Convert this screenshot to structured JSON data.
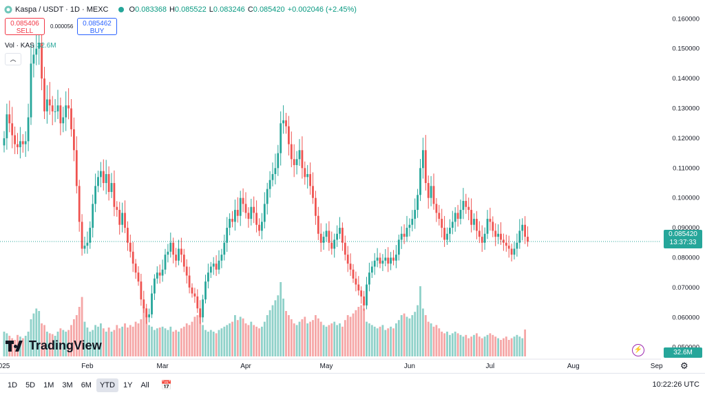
{
  "header": {
    "symbol": "Kaspa / USDT · 1D · MEXC",
    "ohlc": [
      {
        "k": "O",
        "v": "0.083368"
      },
      {
        "k": "H",
        "v": "0.085522"
      },
      {
        "k": "L",
        "v": "0.083246"
      },
      {
        "k": "C",
        "v": "0.085420"
      }
    ],
    "change": "+0.002046 (+2.45%)"
  },
  "trade": {
    "sell_price": "0.085406",
    "sell_label": "SELL",
    "spread": "0.000056",
    "buy_price": "0.085462",
    "buy_label": "BUY"
  },
  "volume_legend": {
    "label": "Vol · KAS",
    "value": "32.6M"
  },
  "price_labels": {
    "last_price": "0.085420",
    "countdown": "13:37:33",
    "volume": "32.6M"
  },
  "timeframes": [
    "1D",
    "5D",
    "1M",
    "3M",
    "6M",
    "YTD",
    "1Y",
    "All"
  ],
  "active_timeframe": "YTD",
  "clock": "10:22:26 UTC",
  "watermark": "TradingView",
  "colors": {
    "up": "#26a69a",
    "down": "#ef5350",
    "vol_up": "#8fd1c9",
    "vol_down": "#f5a6a6",
    "last_price": "#26a69a"
  },
  "icons": [
    "kaspa-logo-icon",
    "status-dot-icon",
    "collapse-chevron-icon",
    "calendar-icon",
    "settings-gear-icon",
    "lightning-icon"
  ],
  "chart_data": {
    "type": "candlestick",
    "ylim": [
      0.046,
      0.164
    ],
    "y_ticks": [
      "0.160000",
      "0.150000",
      "0.140000",
      "0.130000",
      "0.120000",
      "0.110000",
      "0.100000",
      "0.090000",
      "0.080000",
      "0.070000",
      "0.060000",
      "0.050000"
    ],
    "x_labels": [
      "025",
      "Feb",
      "Mar",
      "Apr",
      "May",
      "Jun",
      "Jul",
      "Aug",
      "Sep"
    ],
    "x_label_days": [
      0,
      31,
      59,
      90,
      120,
      151,
      181,
      212,
      243
    ],
    "first_day": "2025-01-01",
    "last_price": 0.08542,
    "closes": [
      0.12,
      0.128,
      0.125,
      0.121,
      0.118,
      0.117,
      0.119,
      0.118,
      0.119,
      0.127,
      0.145,
      0.148,
      0.15,
      0.152,
      0.14,
      0.129,
      0.133,
      0.131,
      0.129,
      0.129,
      0.131,
      0.125,
      0.127,
      0.131,
      0.13,
      0.123,
      0.116,
      0.104,
      0.092,
      0.083,
      0.084,
      0.085,
      0.09,
      0.098,
      0.104,
      0.107,
      0.109,
      0.105,
      0.108,
      0.102,
      0.105,
      0.097,
      0.096,
      0.091,
      0.095,
      0.09,
      0.085,
      0.082,
      0.078,
      0.075,
      0.072,
      0.066,
      0.063,
      0.06,
      0.061,
      0.068,
      0.073,
      0.075,
      0.074,
      0.076,
      0.081,
      0.082,
      0.085,
      0.081,
      0.079,
      0.083,
      0.081,
      0.077,
      0.074,
      0.07,
      0.068,
      0.067,
      0.063,
      0.06,
      0.066,
      0.072,
      0.075,
      0.077,
      0.078,
      0.076,
      0.079,
      0.081,
      0.085,
      0.09,
      0.093,
      0.092,
      0.096,
      0.094,
      0.1,
      0.098,
      0.095,
      0.093,
      0.097,
      0.095,
      0.091,
      0.089,
      0.092,
      0.098,
      0.103,
      0.106,
      0.108,
      0.11,
      0.115,
      0.125,
      0.126,
      0.124,
      0.118,
      0.113,
      0.111,
      0.113,
      0.116,
      0.11,
      0.107,
      0.108,
      0.104,
      0.1,
      0.094,
      0.088,
      0.085,
      0.087,
      0.089,
      0.085,
      0.083,
      0.086,
      0.088,
      0.09,
      0.085,
      0.081,
      0.078,
      0.076,
      0.073,
      0.071,
      0.069,
      0.067,
      0.064,
      0.071,
      0.075,
      0.077,
      0.079,
      0.08,
      0.078,
      0.079,
      0.08,
      0.078,
      0.08,
      0.079,
      0.081,
      0.086,
      0.088,
      0.087,
      0.09,
      0.091,
      0.093,
      0.096,
      0.101,
      0.11,
      0.116,
      0.105,
      0.1,
      0.104,
      0.098,
      0.095,
      0.093,
      0.09,
      0.086,
      0.088,
      0.09,
      0.092,
      0.095,
      0.093,
      0.096,
      0.099,
      0.097,
      0.096,
      0.091,
      0.093,
      0.089,
      0.087,
      0.085,
      0.088,
      0.093,
      0.092,
      0.089,
      0.087,
      0.088,
      0.086,
      0.085,
      0.084,
      0.083,
      0.081,
      0.083,
      0.085,
      0.089,
      0.091,
      0.087,
      0.0854
    ],
    "volumes_M": [
      30,
      28,
      25,
      22,
      20,
      26,
      24,
      22,
      25,
      30,
      45,
      52,
      58,
      55,
      40,
      38,
      30,
      28,
      27,
      25,
      30,
      34,
      32,
      30,
      32,
      38,
      45,
      50,
      60,
      72,
      42,
      35,
      30,
      32,
      38,
      36,
      40,
      34,
      30,
      35,
      30,
      32,
      38,
      34,
      36,
      40,
      35,
      38,
      36,
      42,
      40,
      45,
      60,
      50,
      38,
      36,
      32,
      34,
      35,
      36,
      34,
      32,
      36,
      30,
      32,
      30,
      34,
      36,
      40,
      38,
      42,
      48,
      50,
      52,
      38,
      32,
      30,
      32,
      30,
      28,
      32,
      34,
      36,
      38,
      40,
      42,
      50,
      44,
      48,
      46,
      40,
      38,
      42,
      38,
      36,
      34,
      36,
      42,
      50,
      56,
      62,
      68,
      74,
      90,
      70,
      55,
      50,
      45,
      40,
      38,
      42,
      45,
      48,
      40,
      42,
      44,
      50,
      46,
      42,
      38,
      36,
      38,
      40,
      42,
      38,
      40,
      36,
      44,
      50,
      48,
      52,
      56,
      60,
      62,
      58,
      42,
      40,
      38,
      36,
      34,
      36,
      38,
      32,
      34,
      36,
      34,
      40,
      44,
      50,
      52,
      48,
      46,
      50,
      54,
      62,
      85,
      58,
      50,
      42,
      40,
      36,
      38,
      34,
      30,
      28,
      30,
      26,
      28,
      30,
      28,
      26,
      24,
      26,
      22,
      24,
      26,
      28,
      24,
      22,
      24,
      26,
      28,
      26,
      24,
      22,
      20,
      22,
      24,
      20,
      22,
      24,
      26,
      24,
      22,
      32.6
    ]
  }
}
